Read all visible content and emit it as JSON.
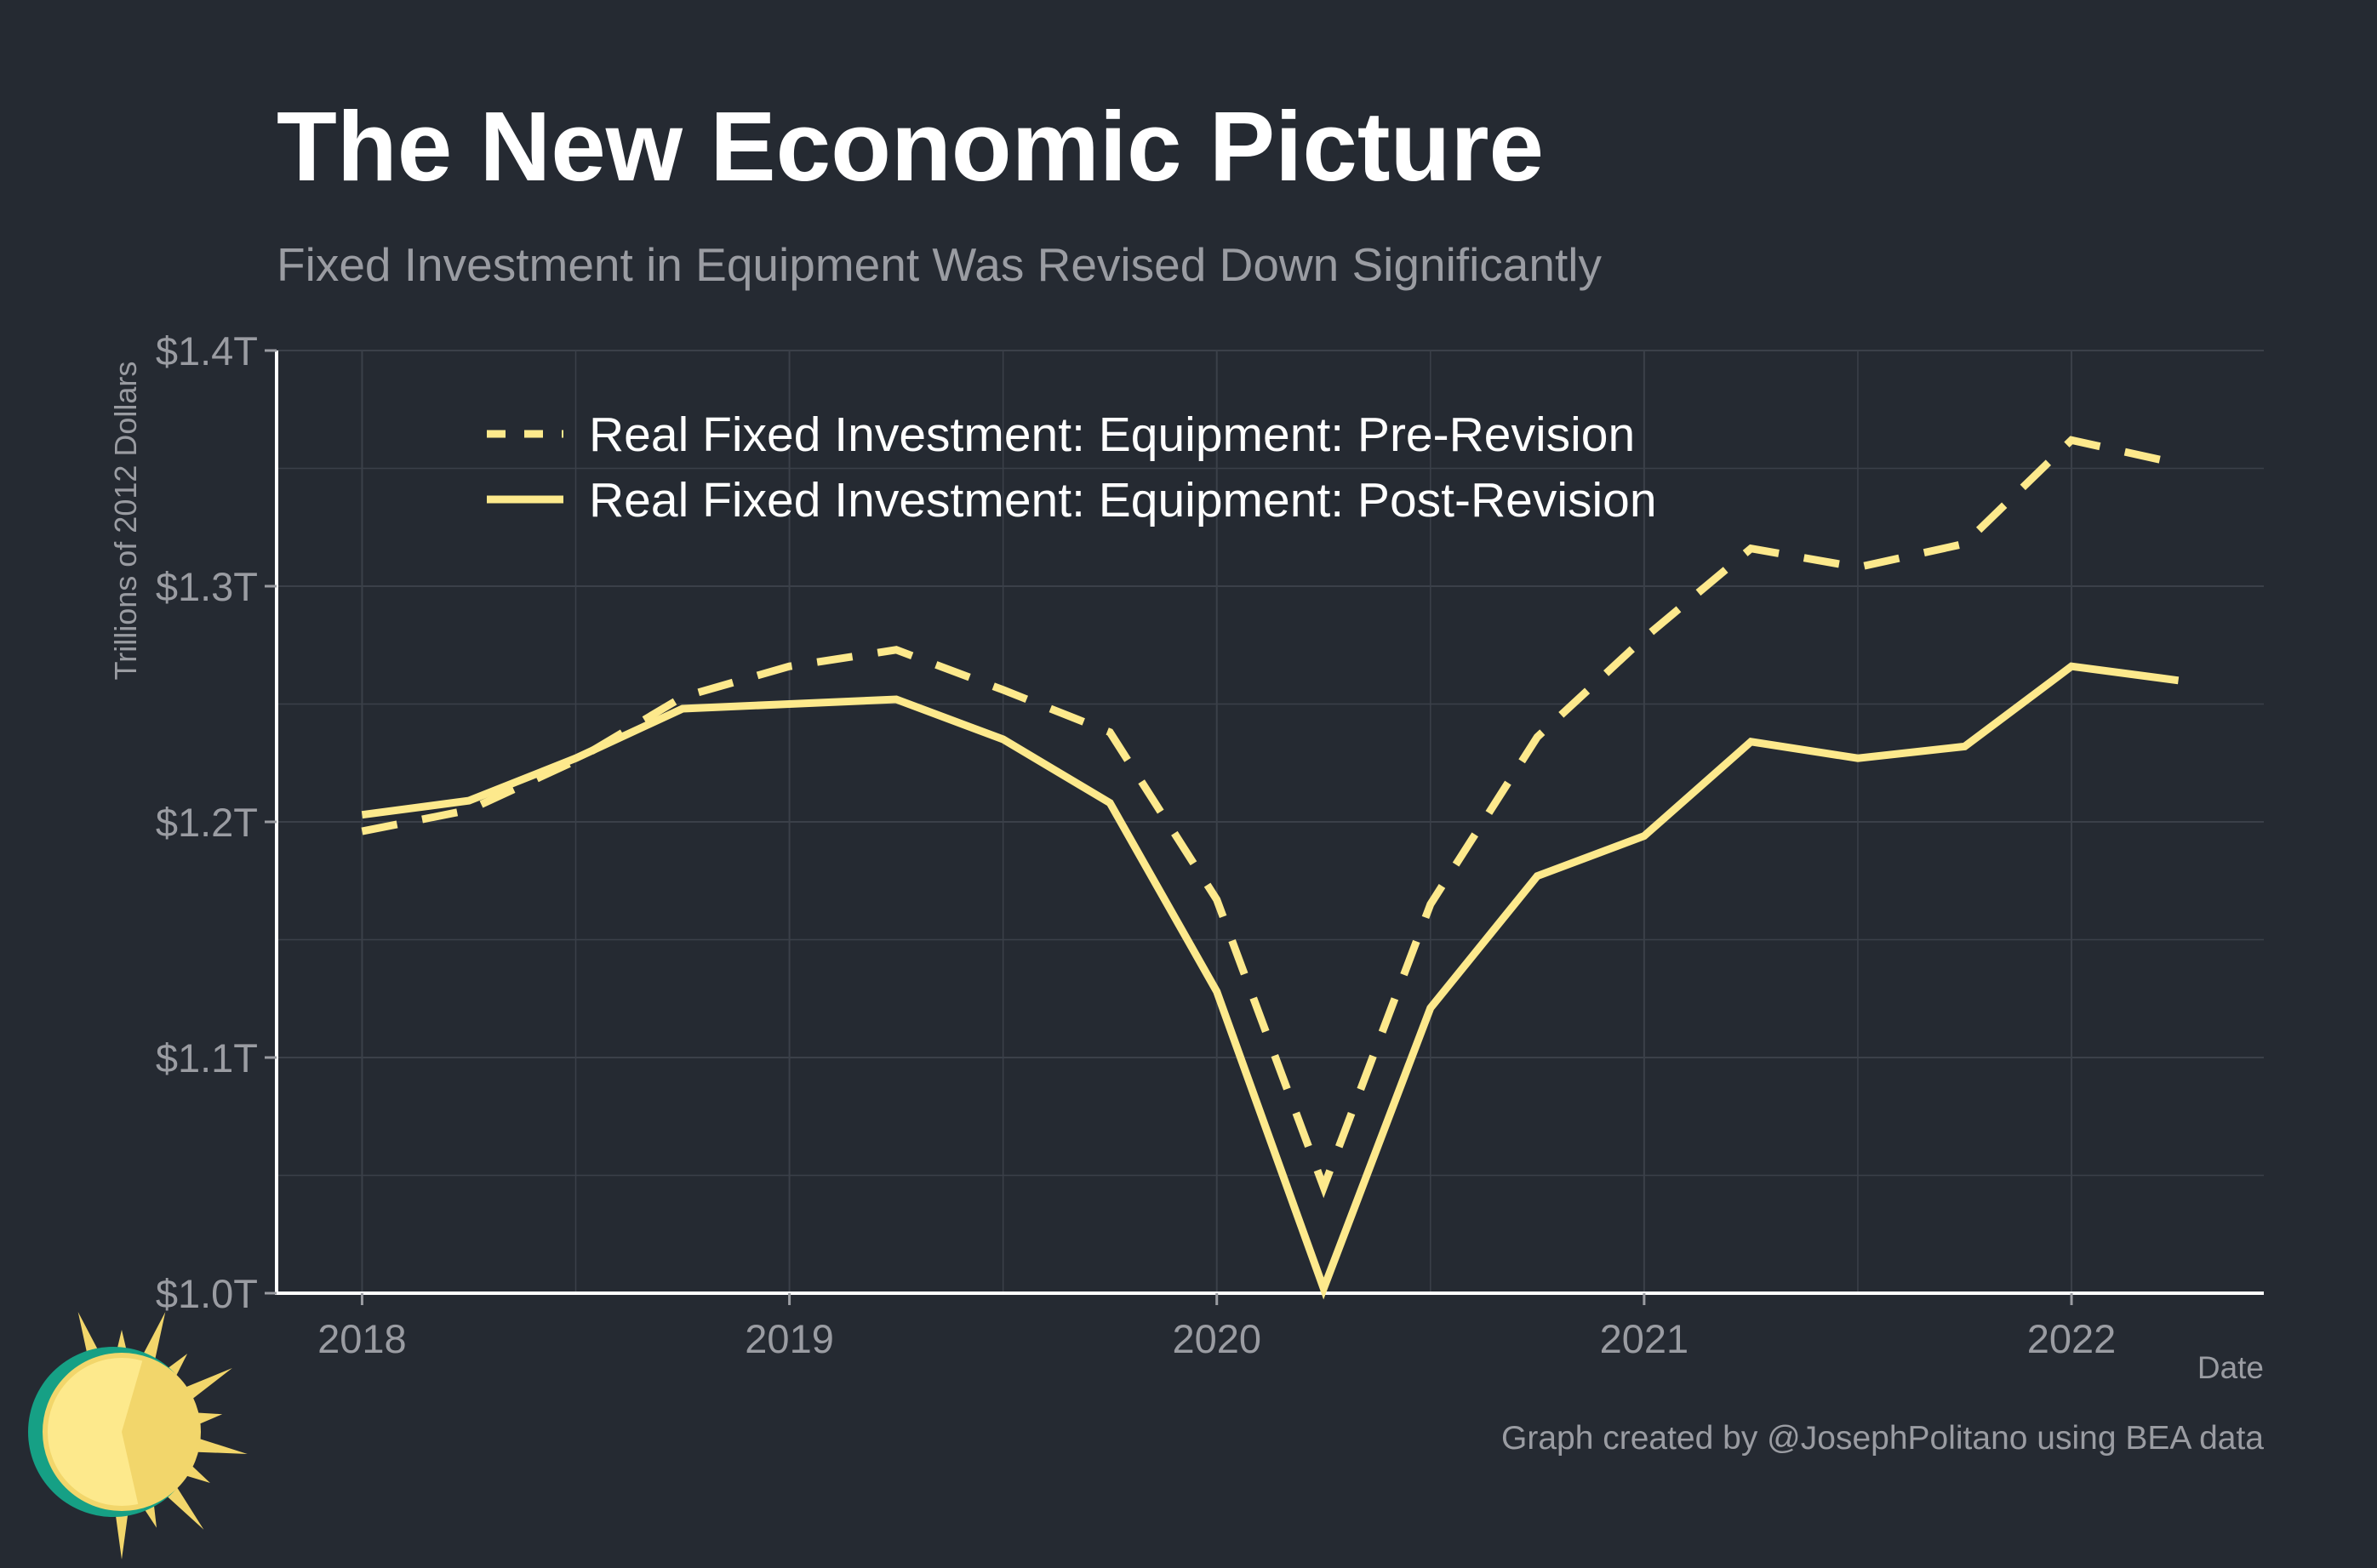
{
  "chart_data": {
    "type": "line",
    "title": "The New Economic Picture",
    "subtitle": "Fixed Investment in Equipment Was Revised Down Significantly",
    "xlabel": "Date",
    "ylabel": "Trillions of 2012 Dollars",
    "ylim": [
      1.0,
      1.4
    ],
    "xlim": [
      "2017-10",
      "2022-07"
    ],
    "y_ticks": [
      1.0,
      1.1,
      1.2,
      1.3,
      1.4
    ],
    "y_tick_labels": [
      "$1.0T",
      "$1.1T",
      "$1.2T",
      "$1.3T",
      "$1.4T"
    ],
    "x_ticks": [
      2018,
      2019,
      2020,
      2021,
      2022
    ],
    "x_tick_labels": [
      "2018",
      "2019",
      "2020",
      "2021",
      "2022"
    ],
    "grid": true,
    "legend_position": "top-left",
    "x": [
      "2018-Q1",
      "2018-Q2",
      "2018-Q3",
      "2018-Q4",
      "2019-Q1",
      "2019-Q2",
      "2019-Q3",
      "2019-Q4",
      "2020-Q1",
      "2020-Q2",
      "2020-Q3",
      "2020-Q4",
      "2021-Q1",
      "2021-Q2",
      "2021-Q3",
      "2021-Q4",
      "2022-Q1",
      "2022-Q2"
    ],
    "x_decimal": [
      2018.0,
      2018.25,
      2018.5,
      2018.75,
      2019.0,
      2019.25,
      2019.5,
      2019.75,
      2020.0,
      2020.25,
      2020.5,
      2020.75,
      2021.0,
      2021.25,
      2021.5,
      2021.75,
      2022.0,
      2022.25
    ],
    "series": [
      {
        "name": "Real Fixed Investment: Equipment: Pre-Revision",
        "style": "dashed",
        "color": "#fde98c",
        "values": [
          1.196,
          1.205,
          1.226,
          1.253,
          1.266,
          1.273,
          1.256,
          1.238,
          1.167,
          1.045,
          1.165,
          1.236,
          1.278,
          1.316,
          1.308,
          1.318,
          1.362,
          1.352
        ]
      },
      {
        "name": "Real Fixed Investment: Equipment: Post-Revision",
        "style": "solid",
        "color": "#fde98c",
        "values": [
          1.203,
          1.209,
          1.227,
          1.248,
          1.25,
          1.252,
          1.235,
          1.208,
          1.128,
          1.002,
          1.121,
          1.177,
          1.194,
          1.234,
          1.227,
          1.232,
          1.266,
          1.26
        ]
      }
    ],
    "footer": "Graph created by @JosephPolitano using BEA data"
  },
  "colors": {
    "background": "#252a32",
    "grid": "#3b4049",
    "axis": "#ffffff",
    "line": "#fde98c",
    "muted_text": "#9a9ca2",
    "logo_teal": "#16a085",
    "logo_yellow": "#f2d66b",
    "logo_light": "#fde98c"
  },
  "logo": {
    "icon": "sun-logo-icon"
  }
}
